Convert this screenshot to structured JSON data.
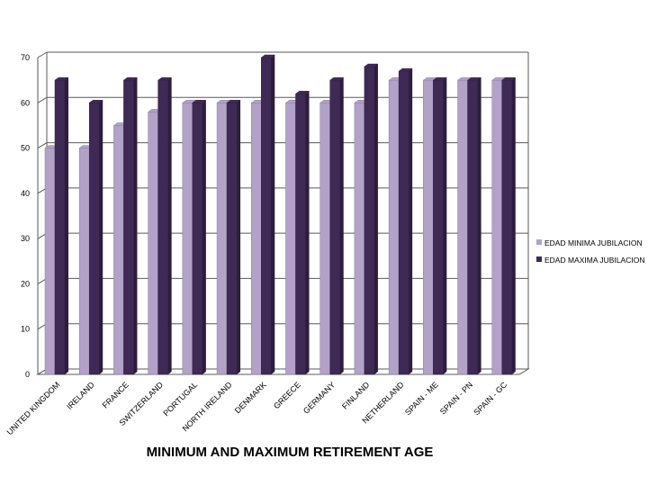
{
  "chart_data": {
    "type": "bar",
    "title": "MINIMUM AND MAXIMUM RETIREMENT AGE",
    "categories": [
      "UNITED KINGDOM",
      "IRELAND",
      "FRANCE",
      "SWITZERLAND",
      "PORTUGAL",
      "NORTH IRELAND",
      "DENMARK",
      "GREECE",
      "GERMANY",
      "FINLAND",
      "NETHERLAND",
      "SPAIN - ME",
      "SPAIN - PN",
      "SPAIN - GC"
    ],
    "series": [
      {
        "name": "EDAD MINIMA JUBILACION",
        "color": "#b3a2c7",
        "values": [
          50,
          50,
          55,
          58,
          60,
          60,
          60,
          60,
          60,
          60,
          65,
          65,
          65,
          65
        ]
      },
      {
        "name": "EDAD MAXIMA JUBILACION",
        "color": "#3f2a56",
        "values": [
          65,
          60,
          65,
          65,
          60,
          60,
          70,
          62,
          65,
          68,
          67,
          65,
          65,
          65
        ]
      }
    ],
    "yticks": [
      0,
      10,
      20,
      30,
      40,
      50,
      60,
      70
    ],
    "ylim": [
      0,
      70
    ],
    "grid": true,
    "legend_position": "right",
    "three_d": true
  }
}
